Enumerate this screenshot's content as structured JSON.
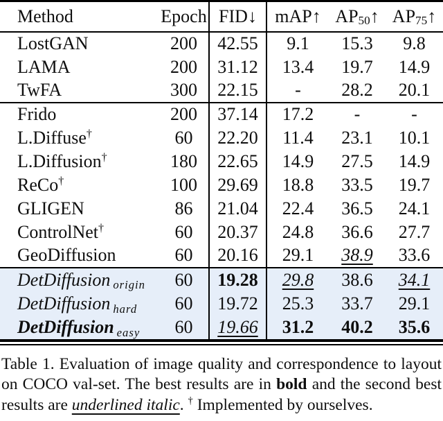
{
  "table": {
    "header": {
      "method": "Method",
      "epoch": "Epoch",
      "fid": "FID",
      "down_arrow": "↓",
      "map": "mAP",
      "up_arrow": "↑",
      "ap": "AP",
      "ap50_sub": "50",
      "ap75_sub": "75"
    },
    "rows": [
      {
        "name": "LostGAN",
        "epoch": "200",
        "fid": "42.55",
        "map": "9.1",
        "ap50": "15.3",
        "ap75": "9.8"
      },
      {
        "name": "LAMA",
        "epoch": "200",
        "fid": "31.12",
        "map": "13.4",
        "ap50": "19.7",
        "ap75": "14.9"
      },
      {
        "name": "TwFA",
        "epoch": "300",
        "fid": "22.15",
        "map": "-",
        "ap50": "28.2",
        "ap75": "20.1"
      },
      {
        "name": "Frido",
        "epoch": "200",
        "fid": "37.14",
        "map": "17.2",
        "ap50": "-",
        "ap75": "-"
      },
      {
        "name": "L.Diffuse",
        "dagger": "†",
        "epoch": "60",
        "fid": "22.20",
        "map": "11.4",
        "ap50": "23.1",
        "ap75": "10.1"
      },
      {
        "name": "L.Diffusion",
        "dagger": "†",
        "epoch": "180",
        "fid": "22.65",
        "map": "14.9",
        "ap50": "27.5",
        "ap75": "14.9"
      },
      {
        "name": "ReCo",
        "dagger": "†",
        "epoch": "100",
        "fid": "29.69",
        "map": "18.8",
        "ap50": "33.5",
        "ap75": "19.7"
      },
      {
        "name": "GLIGEN",
        "epoch": "86",
        "fid": "21.04",
        "map": "22.4",
        "ap50": "36.5",
        "ap75": "24.1"
      },
      {
        "name": "ControlNet",
        "dagger": "†",
        "epoch": "60",
        "fid": "20.37",
        "map": "24.8",
        "ap50": "36.6",
        "ap75": "27.7"
      },
      {
        "name": "GeoDiffusion",
        "epoch": "60",
        "fid": "20.16",
        "map": "29.1",
        "ap50": "38.9",
        "ap75": "33.6"
      },
      {
        "name": "DetDiffusion",
        "variant": "origin",
        "epoch": "60",
        "fid": "19.28",
        "map": "29.8",
        "ap50": "38.6",
        "ap75": "34.1"
      },
      {
        "name": "DetDiffusion",
        "variant": "hard",
        "epoch": "60",
        "fid": "19.72",
        "map": "25.3",
        "ap50": "33.7",
        "ap75": "29.1"
      },
      {
        "name": "DetDiffusion",
        "variant": "easy",
        "epoch": "60",
        "fid": "19.66",
        "map": "31.2",
        "ap50": "40.2",
        "ap75": "35.6"
      }
    ]
  },
  "caption": {
    "line1": "Table 1. Evaluation of image quality and correspondence to layout",
    "line2_pre": "on COCO val-set. The best results are in",
    "line2_bold": "bold",
    "line2_post": "and the second best",
    "line3_pre": "results are ",
    "line3_emph": "underlined italic",
    "line3_period": ". ",
    "line3_dagger": "†",
    "line3_post": " Implemented by ourselves."
  },
  "colors": {
    "highlight": "#e6eef9",
    "rule": "#000000",
    "text": "#0e0e0e"
  }
}
